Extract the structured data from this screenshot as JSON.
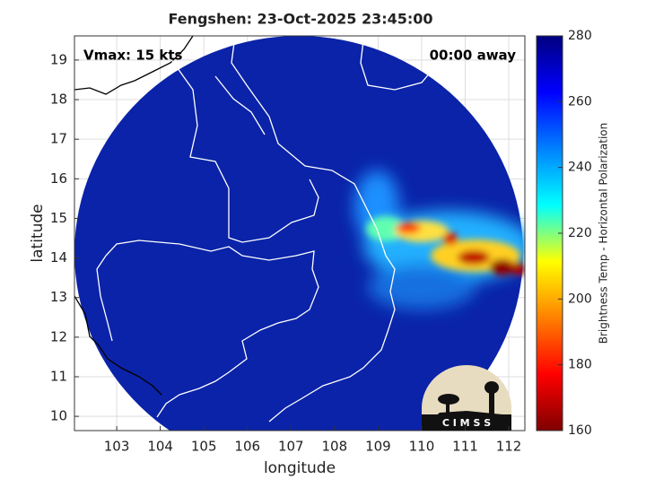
{
  "chart_data": {
    "type": "map",
    "title": "Fengshen: 23-Oct-2025 23:45:00",
    "xlabel": "longitude",
    "ylabel": "latitude",
    "annotations": [
      "Vmax: 15 kts",
      "00:00 away"
    ],
    "logo_text": "C I M S S",
    "xlim": [
      102.03,
      112.37
    ],
    "ylim": [
      9.64,
      19.61
    ],
    "xticks": [
      103,
      104,
      105,
      106,
      107,
      108,
      109,
      110,
      111,
      112
    ],
    "yticks": [
      10,
      11,
      12,
      13,
      14,
      15,
      16,
      17,
      18,
      19
    ],
    "grid": true,
    "colorbar": {
      "label": "Brightness Temp - Horizontal Polarization",
      "lim": [
        160,
        280
      ],
      "ticks": [
        160,
        180,
        200,
        220,
        240,
        260,
        280
      ],
      "colors": [
        "#7f0000",
        "#ff0000",
        "#ff8000",
        "#ffff00",
        "#00ffff",
        "#0080ff",
        "#0000ff",
        "#00007f"
      ]
    }
  }
}
